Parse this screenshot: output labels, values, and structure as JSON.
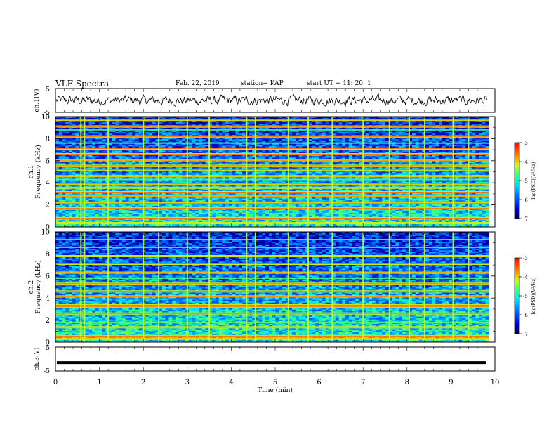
{
  "header": {
    "title": "VLF Spectra",
    "date": "Feb. 22, 2019",
    "station": "station= KAP",
    "start": "start  UT =   11: 20: 1"
  },
  "chart_data": [
    {
      "type": "line",
      "panel": "ch1-waveform",
      "ylabel": "ch.1(V)",
      "ylim": [
        -5,
        5
      ],
      "ytick_labels": [
        "5",
        "-5"
      ],
      "xlim": [
        0,
        10
      ],
      "samples_per_unit": 60,
      "approx_amplitude_V": 1.8
    },
    {
      "type": "heatmap",
      "panel": "ch1-spectrogram",
      "ylabel": "ch.1\nFrequency (kHz)",
      "ylim": [
        0,
        10
      ],
      "yticks": [
        0,
        2,
        4,
        6,
        8,
        10
      ],
      "xlim": [
        0,
        10
      ],
      "colorbar": {
        "label": "log(PSD)(V²/Hz)",
        "range": [
          -7,
          -3
        ],
        "ticks": [
          -3,
          -4,
          -5,
          -6,
          -7
        ]
      },
      "strong_bands_kHz": [
        0.35,
        0.8,
        1.7,
        2.15,
        2.8,
        3.15,
        3.55,
        3.9,
        4.6,
        5.2,
        5.55,
        6.05,
        6.6,
        7.1,
        8.2,
        9.1,
        9.7
      ],
      "weak_bands_kHz": [
        4.3,
        7.6,
        8.8
      ],
      "broadband_events_min": [
        0.58,
        0.66,
        1.2,
        2.0,
        2.35,
        3.0,
        3.5,
        4.35,
        4.55,
        5.3,
        5.75,
        6.3,
        7.0,
        7.6,
        8.05,
        8.4,
        9.05,
        9.4
      ]
    },
    {
      "type": "heatmap",
      "panel": "ch2-spectrogram",
      "ylabel": "ch.2\nFrequency (kHz)",
      "ylim": [
        0,
        10
      ],
      "yticks": [
        0,
        2,
        4,
        6,
        8,
        10
      ],
      "xlim": [
        0,
        10
      ],
      "colorbar": {
        "label": "log(PSD)(V²/Hz)",
        "range": [
          -7,
          -3
        ],
        "ticks": [
          -3,
          -4,
          -5,
          -6,
          -7
        ]
      },
      "strong_bands_kHz": [
        0.3,
        0.55,
        1.35,
        2.6,
        3.2,
        3.35,
        4.15,
        4.6,
        5.3,
        6.3,
        7.1,
        7.8
      ],
      "weak_bands_kHz": [
        1.8,
        5.8,
        8.6,
        9.3
      ],
      "broadband_events_min": [
        0.58,
        0.66,
        1.2,
        2.0,
        2.35,
        3.0,
        3.5,
        4.35,
        4.55,
        5.3,
        5.75,
        6.3,
        7.0,
        7.6,
        8.05,
        8.4,
        9.05,
        9.4
      ]
    },
    {
      "type": "line",
      "panel": "ch3-waveform",
      "ylabel": "ch.3(V)",
      "ylim": [
        -5,
        5
      ],
      "ytick_labels": [
        "5",
        "-5"
      ],
      "xlim": [
        0,
        10
      ],
      "xlabel": "Time (min)",
      "xticks": [
        0,
        1,
        2,
        3,
        4,
        5,
        6,
        7,
        8,
        9,
        10
      ],
      "constant_value_V": -1.5
    }
  ]
}
